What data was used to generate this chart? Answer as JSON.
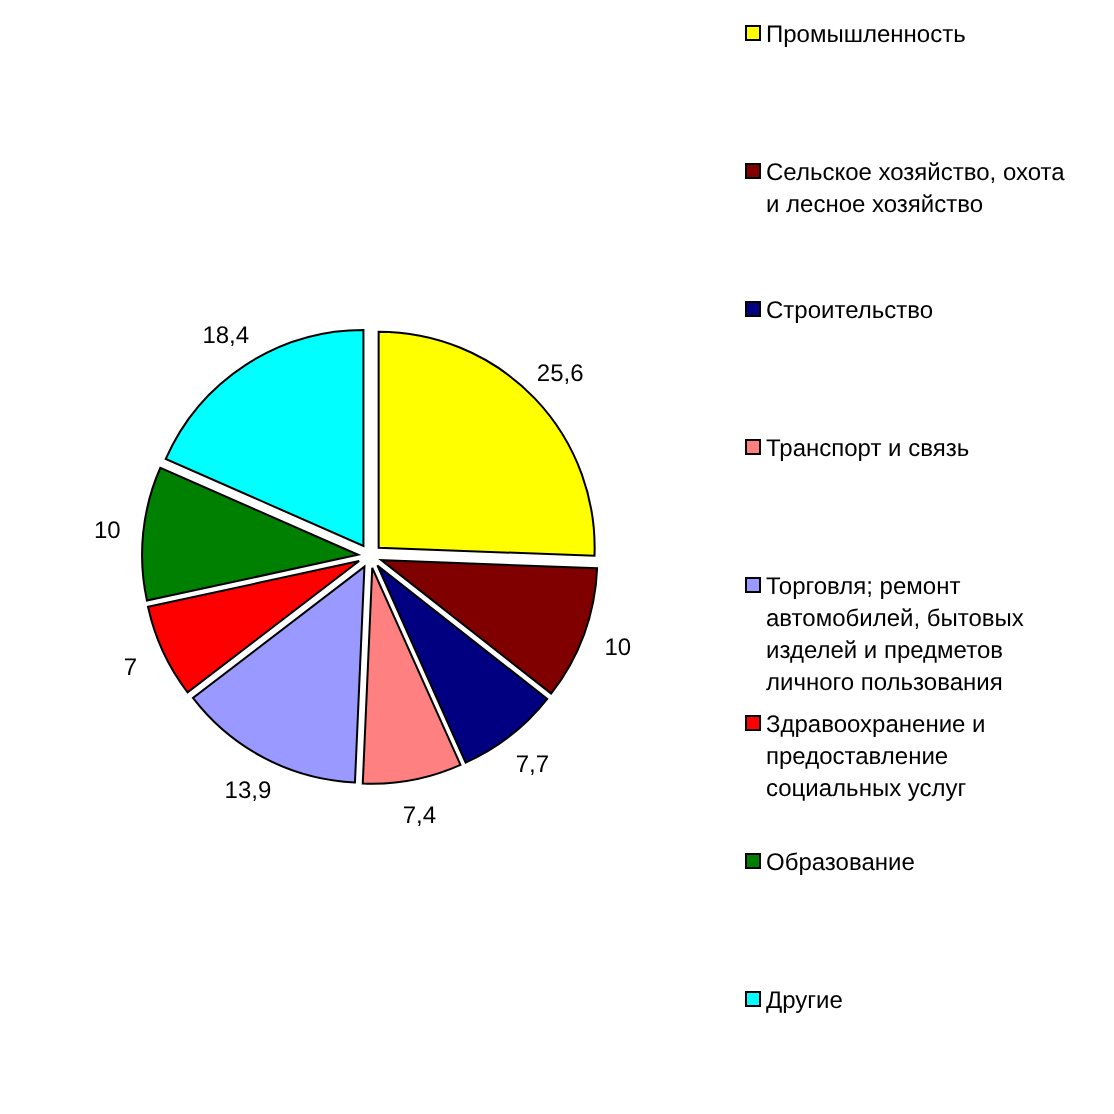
{
  "chart_data": {
    "type": "pie",
    "categories": [
      "Промышленность",
      "Сельское хозяйство, охота и лесное хозяйство",
      "Строительство",
      "Транспорт и связь",
      "Торговля; ремонт автомобилей, бытовых изделей и предметов личного пользования",
      "Здравоохранение и предоставление социальных услуг",
      "Образование",
      "Другие"
    ],
    "values": [
      25.6,
      10,
      7.7,
      7.4,
      13.9,
      7,
      10,
      18.4
    ],
    "colors": [
      "#ffff00",
      "#800000",
      "#000080",
      "#ff8080",
      "#9999ff",
      "#ff0000",
      "#008000",
      "#00ffff"
    ],
    "value_labels": [
      "25,6",
      "10",
      "7,7",
      "7,4",
      "13,9",
      "7",
      "10",
      "18,4"
    ],
    "legend": "right"
  }
}
